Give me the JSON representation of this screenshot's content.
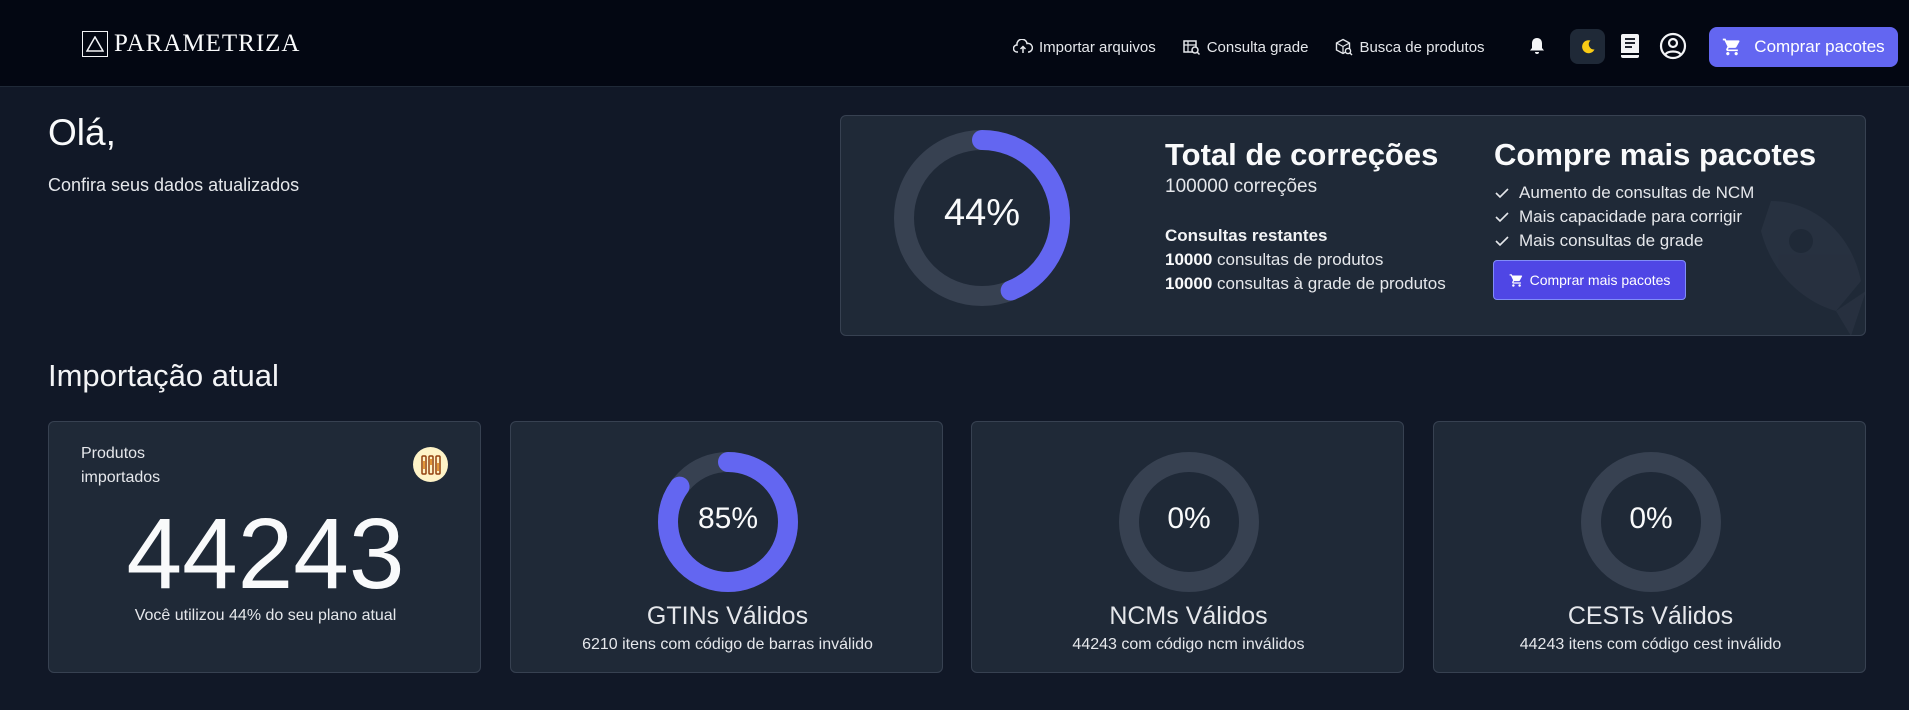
{
  "header": {
    "brand": "PARAMETRIZA",
    "nav": [
      {
        "label": "Importar arquivos",
        "icon": "cloud-upload-icon"
      },
      {
        "label": "Consulta grade",
        "icon": "search-table-icon"
      },
      {
        "label": "Busca de produtos",
        "icon": "package-search-icon"
      }
    ],
    "buy_label": "Comprar pacotes"
  },
  "greeting": {
    "title": "Olá,",
    "subtitle": "Confira seus dados atualizados"
  },
  "summary": {
    "usage_percent": 44,
    "usage_label": "44%",
    "total_title": "Total de correções",
    "total_count": "100000 correções",
    "remaining_title": "Consultas restantes",
    "products_count": "10000",
    "products_text": "consultas de produtos",
    "grade_count": "10000",
    "grade_text": "consultas à grade de produtos",
    "buy_title": "Compre mais pacotes",
    "benefits": [
      "Aumento de consultas de NCM",
      "Mais capacidade para corrigir",
      "Mais consultas de grade"
    ],
    "buy_button": "Comprar mais pacotes"
  },
  "import": {
    "title": "Importação atual",
    "products_label": "Produtos importados",
    "products_total": "44243",
    "plan_usage": "Você utilizou 44% do seu plano atual",
    "cards": [
      {
        "percent": 85,
        "label": "85%",
        "title": "GTINs Válidos",
        "subtitle": "6210 itens com código de barras inválido"
      },
      {
        "percent": 0,
        "label": "0%",
        "title": "NCMs Válidos",
        "subtitle": "44243 com código ncm inválidos"
      },
      {
        "percent": 0,
        "label": "0%",
        "title": "CESTs Válidos",
        "subtitle": "44243 itens com código cest inválido"
      }
    ]
  },
  "colors": {
    "accent": "#6366f1",
    "track": "#374151",
    "background": "#111827",
    "card": "#1f2937"
  }
}
